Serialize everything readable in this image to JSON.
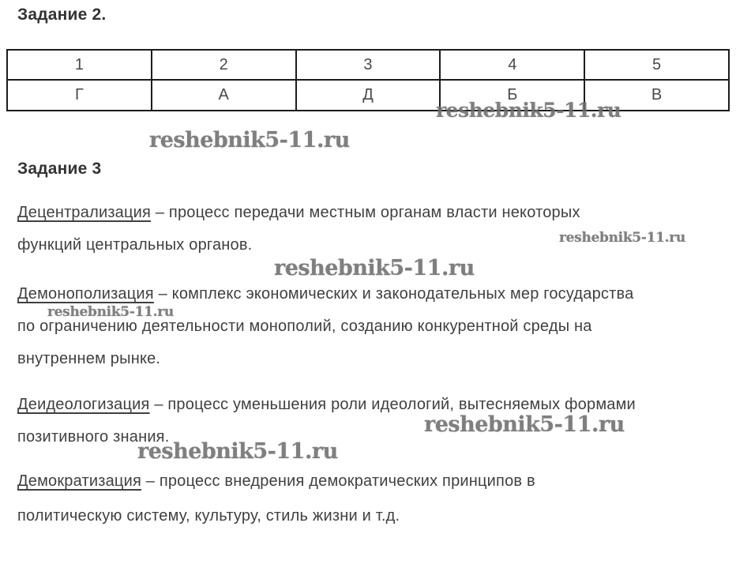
{
  "colors": {
    "background": "#ffffff",
    "body_text": "#404040",
    "heading_text": "#333333",
    "table_border": "#1c1c1c",
    "watermark": "#6e6e6e"
  },
  "task2": {
    "title": "Задание 2."
  },
  "table": {
    "headers": [
      "1",
      "2",
      "3",
      "4",
      "5"
    ],
    "answers": [
      "Г",
      "А",
      "Д",
      "Б",
      "В"
    ]
  },
  "task3": {
    "title": "Задание 3"
  },
  "definitions": [
    {
      "term": "Децентрализация",
      "rest": " – процесс передачи местным органам власти некоторых\nфункций центральных органов."
    },
    {
      "term": "Демонополизация",
      "rest": " – комплекс экономических и законодательных мер государства\nпо ограничению деятельности монополий, созданию конкурентной среды на\nвнутреннем рынке."
    },
    {
      "term": "Деидеологизация",
      "rest": " – процесс уменьшения роли идеологий, вытесняемых формами\nпозитивного знания."
    },
    {
      "term": "Демократизация",
      "rest": " – процесс внедрения демократических принципов в\nполитическую систему, культуру, стиль жизни и т.д."
    }
  ],
  "watermark": {
    "text": "reshebnik5-11.ru"
  }
}
